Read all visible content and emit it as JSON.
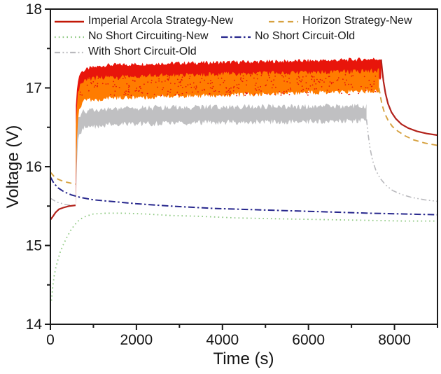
{
  "figure": {
    "background": "#ffffff"
  },
  "chart_data": {
    "type": "line",
    "title": "",
    "xlabel": "Time (s)",
    "ylabel": "Voltage (V)",
    "xlim": [
      0,
      9000
    ],
    "ylim": [
      14,
      18
    ],
    "x_ticks": [
      0,
      2000,
      4000,
      6000,
      8000
    ],
    "x_minor_ticks": [
      1000,
      3000,
      5000,
      7000,
      9000
    ],
    "y_ticks": [
      14,
      15,
      16,
      17,
      18
    ],
    "y_minor_ticks": [
      14.5,
      15.5,
      16.5,
      17.5
    ],
    "grid": false,
    "legend_position": "top-left-inside",
    "axis_color": "#1a1a1a",
    "series": [
      {
        "name": "Imperial Arcola Strategy-New",
        "line_color": "#b2211a",
        "legend_color": "#c21807",
        "band_color": "#e8150b",
        "line_style": "solid",
        "line_width": 2.2,
        "jitter": 0.05,
        "pre": [
          [
            5,
            15.33
          ],
          [
            60,
            15.37
          ],
          [
            120,
            15.42
          ],
          [
            200,
            15.46
          ],
          [
            300,
            15.48
          ],
          [
            430,
            15.5
          ],
          [
            585,
            15.51
          ]
        ],
        "band_top": [
          [
            592,
            16.8
          ],
          [
            640,
            17.1
          ],
          [
            700,
            17.2
          ],
          [
            900,
            17.25
          ],
          [
            1300,
            17.29
          ],
          [
            2500,
            17.31
          ],
          [
            4500,
            17.33
          ],
          [
            6500,
            17.35
          ],
          [
            7690,
            17.37
          ]
        ],
        "band_bottom": [
          [
            592,
            15.51
          ],
          [
            610,
            16.4
          ],
          [
            640,
            16.9
          ],
          [
            800,
            17.0
          ],
          [
            1500,
            17.03
          ],
          [
            3500,
            17.06
          ],
          [
            5500,
            17.08
          ],
          [
            7690,
            17.11
          ]
        ],
        "post": [
          [
            7690,
            17.36
          ],
          [
            7715,
            17.22
          ],
          [
            7745,
            17.08
          ],
          [
            7790,
            16.93
          ],
          [
            7850,
            16.8
          ],
          [
            7930,
            16.69
          ],
          [
            8030,
            16.61
          ],
          [
            8160,
            16.54
          ],
          [
            8320,
            16.49
          ],
          [
            8520,
            16.45
          ],
          [
            8750,
            16.42
          ],
          [
            9000,
            16.4
          ]
        ]
      },
      {
        "name": "Horizon Strategy-New",
        "line_color": "#d6a13f",
        "legend_color": "#d6a13f",
        "band_color": "#ff7c00",
        "line_style": "dashed",
        "line_width": 1.9,
        "jitter": 0.06,
        "pre": [
          [
            0,
            15.93
          ],
          [
            80,
            15.88
          ],
          [
            180,
            15.84
          ],
          [
            320,
            15.81
          ],
          [
            480,
            15.79
          ],
          [
            588,
            15.78
          ]
        ],
        "band_top": [
          [
            592,
            16.5
          ],
          [
            640,
            16.95
          ],
          [
            720,
            17.08
          ],
          [
            1100,
            17.13
          ],
          [
            2500,
            17.16
          ],
          [
            4500,
            17.18
          ],
          [
            6500,
            17.2
          ],
          [
            7640,
            17.22
          ]
        ],
        "band_bottom": [
          [
            592,
            15.78
          ],
          [
            612,
            16.25
          ],
          [
            650,
            16.7
          ],
          [
            800,
            16.84
          ],
          [
            1500,
            16.87
          ],
          [
            3500,
            16.9
          ],
          [
            5500,
            16.93
          ],
          [
            7640,
            16.96
          ]
        ],
        "post": [
          [
            7640,
            17.0
          ],
          [
            7670,
            16.9
          ],
          [
            7710,
            16.79
          ],
          [
            7770,
            16.68
          ],
          [
            7850,
            16.59
          ],
          [
            7950,
            16.51
          ],
          [
            8080,
            16.45
          ],
          [
            8250,
            16.39
          ],
          [
            8450,
            16.34
          ],
          [
            8700,
            16.3
          ],
          [
            9000,
            16.27
          ]
        ],
        "speckles": {
          "count": 320,
          "t_range": [
            680,
            7560
          ],
          "v_range": [
            16.9,
            17.17
          ],
          "color": "#e8150b",
          "r": 0.9
        }
      },
      {
        "name": "No Short Circuiting-New",
        "line_color": "#8cc87f",
        "legend_color": "#8cc87f",
        "line_style": "dotted",
        "line_width": 1.8,
        "points": [
          [
            25,
            14.3
          ],
          [
            55,
            14.48
          ],
          [
            90,
            14.62
          ],
          [
            130,
            14.73
          ],
          [
            175,
            14.82
          ],
          [
            230,
            14.92
          ],
          [
            300,
            15.01
          ],
          [
            380,
            15.1
          ],
          [
            470,
            15.19
          ],
          [
            560,
            15.26
          ],
          [
            680,
            15.33
          ],
          [
            820,
            15.37
          ],
          [
            1000,
            15.4
          ],
          [
            1300,
            15.41
          ],
          [
            1700,
            15.41
          ],
          [
            2200,
            15.4
          ],
          [
            2800,
            15.38
          ],
          [
            3500,
            15.37
          ],
          [
            4300,
            15.35
          ],
          [
            5200,
            15.34
          ],
          [
            6200,
            15.33
          ],
          [
            7300,
            15.32
          ],
          [
            8200,
            15.31
          ],
          [
            9000,
            15.31
          ]
        ]
      },
      {
        "name": "No Short Circuit-Old",
        "line_color": "#27278d",
        "legend_color": "#27278d",
        "line_style": "dashdot",
        "line_width": 2,
        "points": [
          [
            0,
            15.87
          ],
          [
            80,
            15.79
          ],
          [
            180,
            15.73
          ],
          [
            320,
            15.68
          ],
          [
            500,
            15.64
          ],
          [
            700,
            15.61
          ],
          [
            1000,
            15.58
          ],
          [
            1400,
            15.56
          ],
          [
            2000,
            15.53
          ],
          [
            2800,
            15.5
          ],
          [
            3800,
            15.47
          ],
          [
            5000,
            15.45
          ],
          [
            6200,
            15.43
          ],
          [
            7400,
            15.41
          ],
          [
            8200,
            15.4
          ],
          [
            9000,
            15.39
          ]
        ]
      },
      {
        "name": "With Short Circuit-Old",
        "line_color": "#b9b9bd",
        "legend_color": "#b9b9bd",
        "band_color": "#c0c0c2",
        "line_style": "dashdotdot",
        "line_width": 1.6,
        "jitter": 0.07,
        "pre": [
          [
            0,
            15.6
          ],
          [
            150,
            15.55
          ],
          [
            350,
            15.52
          ],
          [
            588,
            15.5
          ]
        ],
        "band_top": [
          [
            592,
            16.35
          ],
          [
            640,
            16.62
          ],
          [
            750,
            16.7
          ],
          [
            1200,
            16.73
          ],
          [
            2500,
            16.75
          ],
          [
            4500,
            16.76
          ],
          [
            7350,
            16.77
          ]
        ],
        "band_bottom": [
          [
            592,
            15.5
          ],
          [
            612,
            16.0
          ],
          [
            650,
            16.4
          ],
          [
            800,
            16.5
          ],
          [
            1500,
            16.54
          ],
          [
            3500,
            16.56
          ],
          [
            7350,
            16.58
          ]
        ],
        "post": [
          [
            7350,
            16.6
          ],
          [
            7385,
            16.42
          ],
          [
            7430,
            16.24
          ],
          [
            7490,
            16.08
          ],
          [
            7570,
            15.95
          ],
          [
            7670,
            15.85
          ],
          [
            7790,
            15.77
          ],
          [
            7950,
            15.7
          ],
          [
            8150,
            15.65
          ],
          [
            8400,
            15.61
          ],
          [
            8700,
            15.58
          ],
          [
            9000,
            15.56
          ]
        ]
      }
    ]
  }
}
